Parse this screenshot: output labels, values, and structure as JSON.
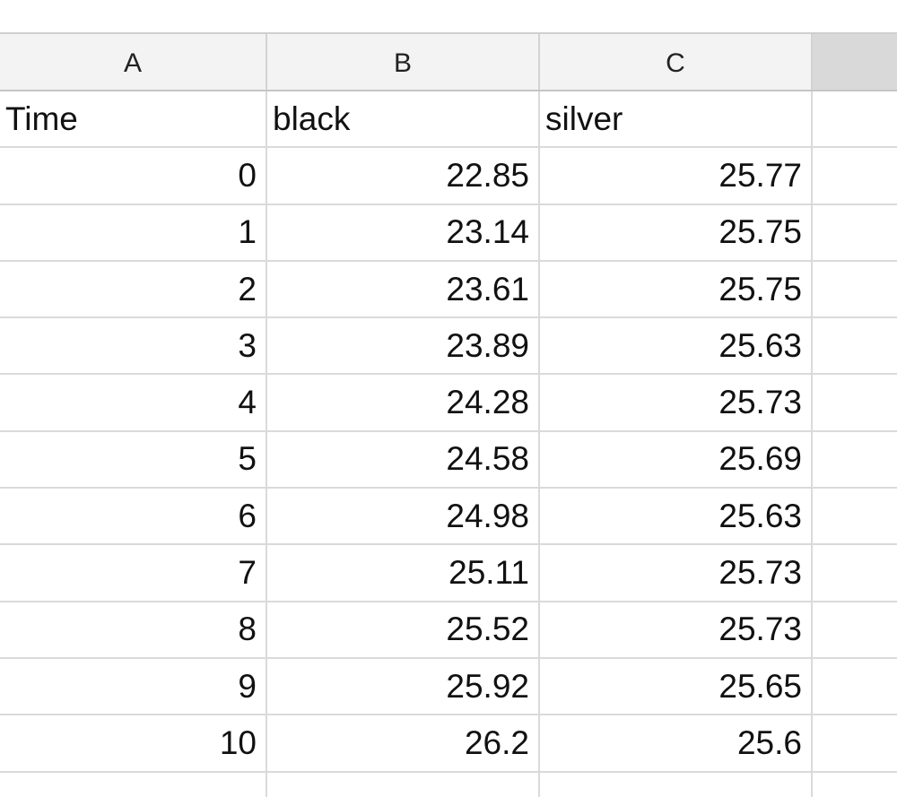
{
  "columns": [
    "A",
    "B",
    "C",
    ""
  ],
  "header_row": {
    "a": "Time",
    "b": "black",
    "c": "silver"
  },
  "rows": [
    {
      "time": "0",
      "black": "22.85",
      "silver": "25.77"
    },
    {
      "time": "1",
      "black": "23.14",
      "silver": "25.75"
    },
    {
      "time": "2",
      "black": "23.61",
      "silver": "25.75"
    },
    {
      "time": "3",
      "black": "23.89",
      "silver": "25.63"
    },
    {
      "time": "4",
      "black": "24.28",
      "silver": "25.73"
    },
    {
      "time": "5",
      "black": "24.58",
      "silver": "25.69"
    },
    {
      "time": "6",
      "black": "24.98",
      "silver": "25.63"
    },
    {
      "time": "7",
      "black": "25.11",
      "silver": "25.73"
    },
    {
      "time": "8",
      "black": "25.52",
      "silver": "25.73"
    },
    {
      "time": "9",
      "black": "25.92",
      "silver": "25.65"
    },
    {
      "time": "10",
      "black": "26.2",
      "silver": "25.6"
    },
    {
      "time": "",
      "black": "",
      "silver": ""
    }
  ]
}
